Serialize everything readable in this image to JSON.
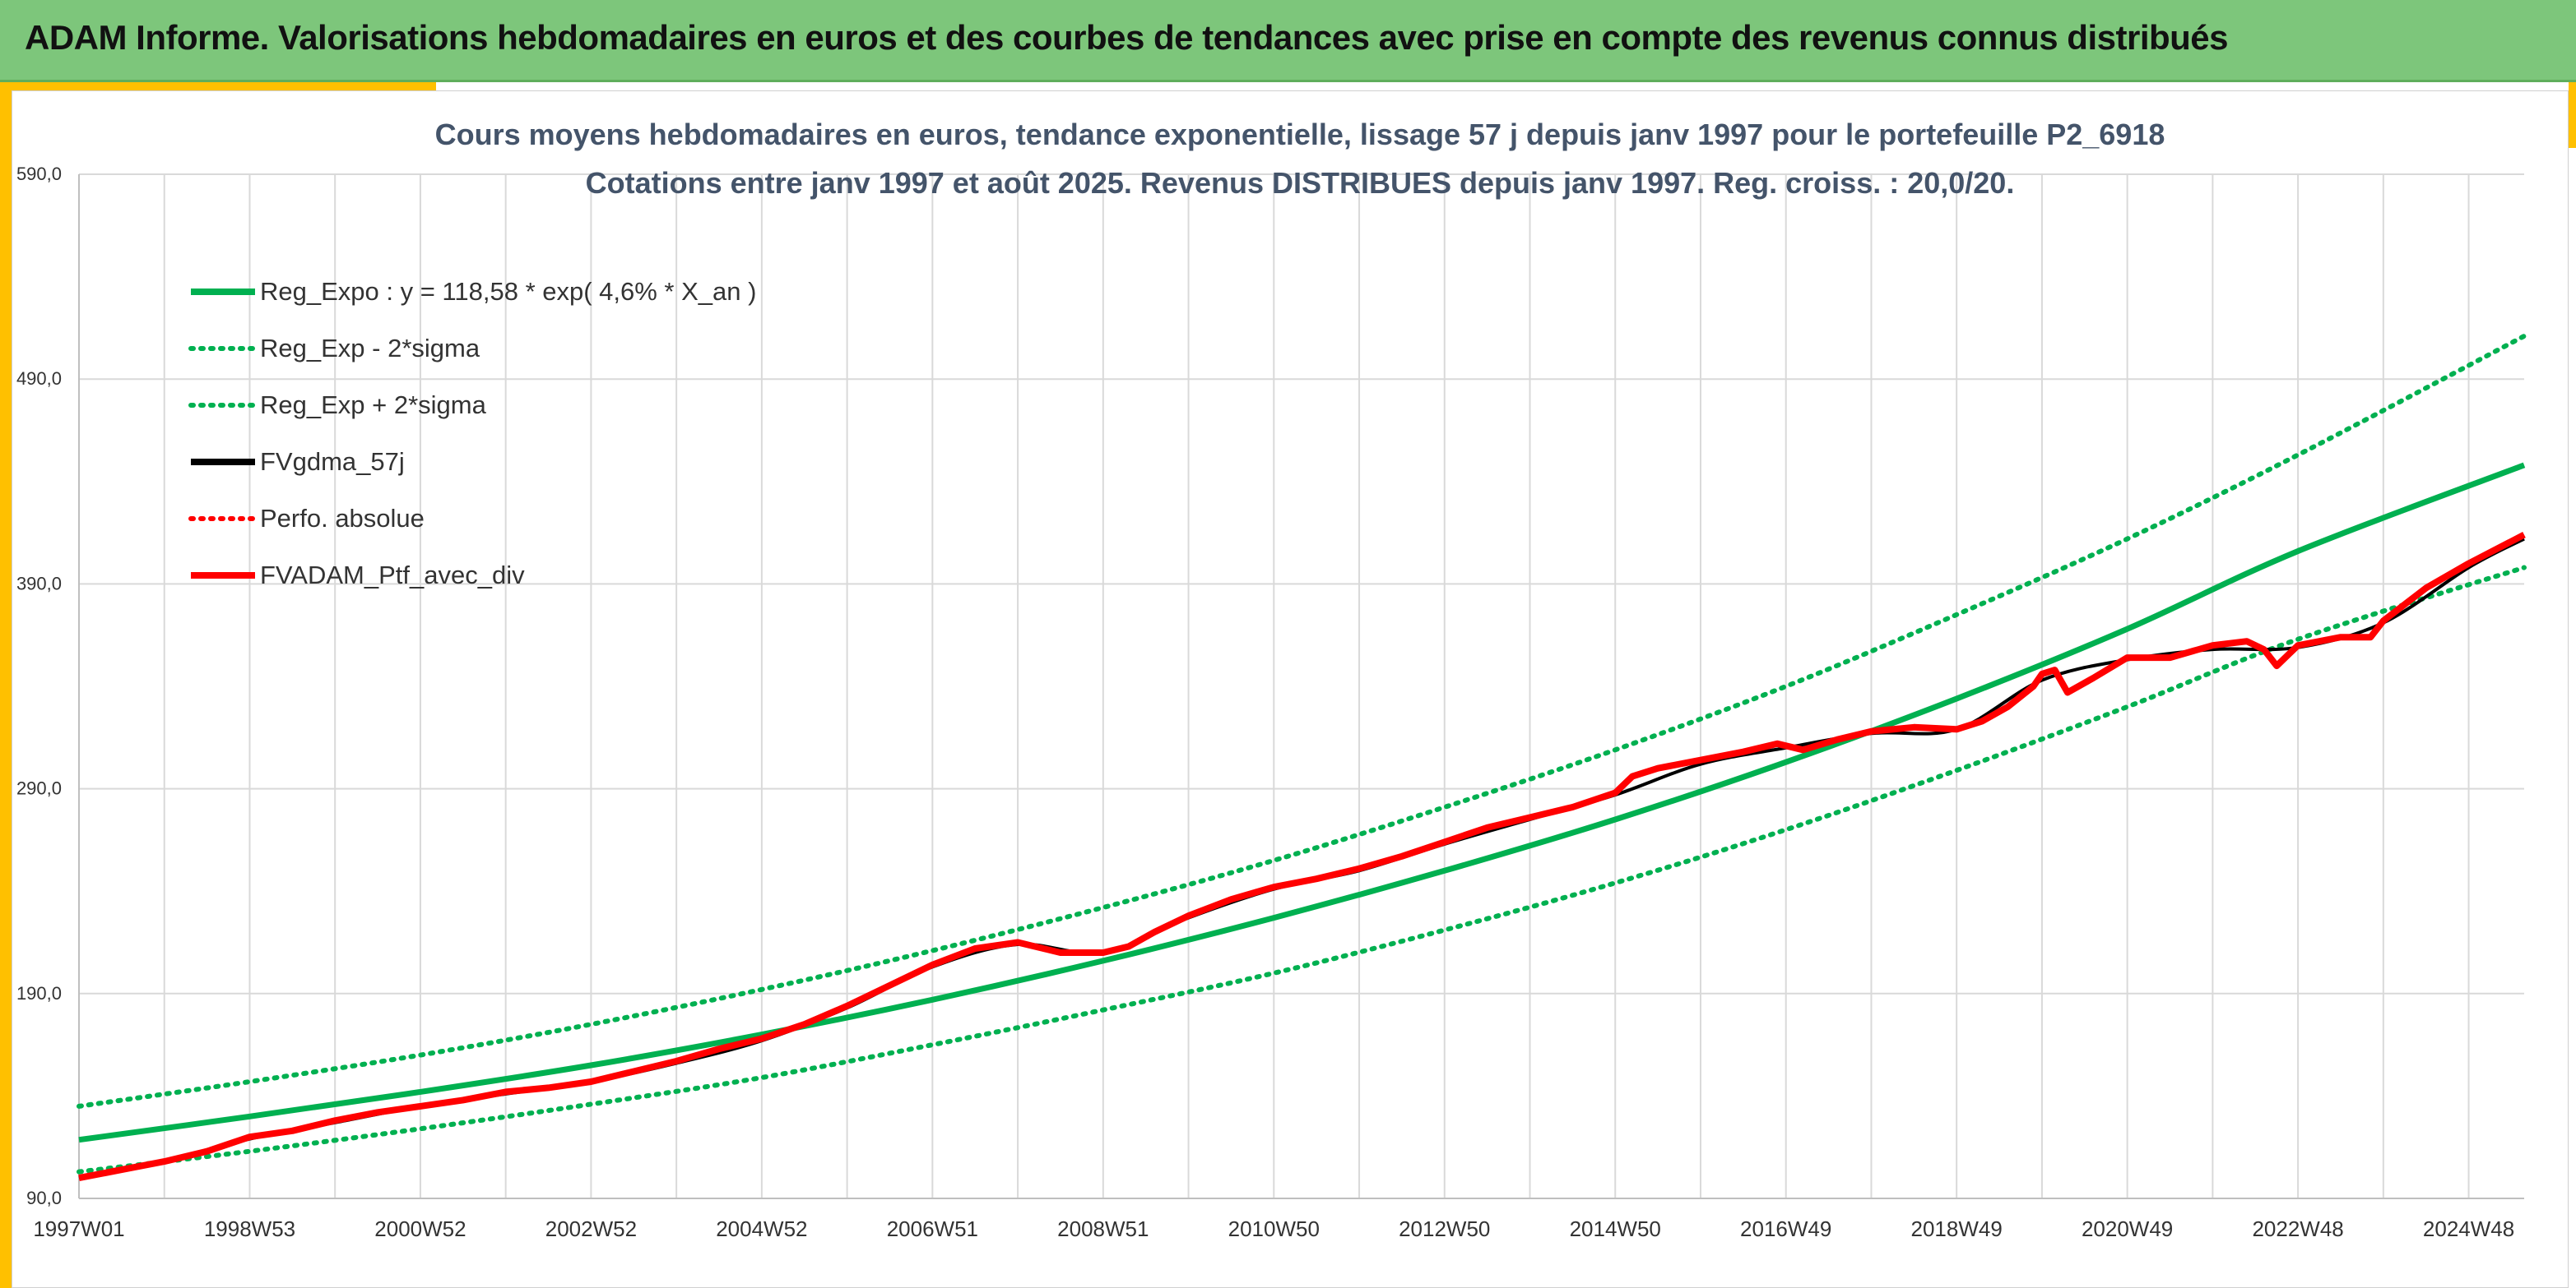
{
  "banner": {
    "title": "ADAM Informe. Valorisations hebdomadaires en euros et des courbes de tendances avec prise en compte des revenus connus distribués"
  },
  "colors": {
    "banner_bg": "#7dc67b",
    "accent": "#ffc000",
    "trend_green": "#00b050",
    "series_red": "#ff0000",
    "series_black": "#000000"
  },
  "chart_data": {
    "type": "line",
    "title": "Cours moyens hebdomadaires en euros, tendance exponentielle, lissage 57 j depuis janv 1997 pour le portefeuille P2_6918",
    "subtitle": "Cotations entre janv 1997 et août 2025. Revenus DISTRIBUES depuis janv 1997. Reg. croiss. : 20,0/20.",
    "xlabel": "",
    "ylabel": "",
    "xlim": [
      1997.0,
      2025.65
    ],
    "ylim": [
      90,
      590
    ],
    "y_ticks": [
      "90,0",
      "190,0",
      "290,0",
      "390,0",
      "490,0",
      "590,0"
    ],
    "x_ticks": [
      {
        "x": 1997.0,
        "label": "1997W01"
      },
      {
        "x": 1999.0,
        "label": "1998W53"
      },
      {
        "x": 2001.0,
        "label": "2000W52"
      },
      {
        "x": 2003.0,
        "label": "2002W52"
      },
      {
        "x": 2005.0,
        "label": "2004W52"
      },
      {
        "x": 2007.0,
        "label": "2006W51"
      },
      {
        "x": 2009.0,
        "label": "2008W51"
      },
      {
        "x": 2011.0,
        "label": "2010W50"
      },
      {
        "x": 2013.0,
        "label": "2012W50"
      },
      {
        "x": 2015.0,
        "label": "2014W50"
      },
      {
        "x": 2017.0,
        "label": "2016W49"
      },
      {
        "x": 2019.0,
        "label": "2018W49"
      },
      {
        "x": 2021.0,
        "label": "2020W49"
      },
      {
        "x": 2023.0,
        "label": "2022W48"
      },
      {
        "x": 2025.0,
        "label": "2024W48"
      }
    ],
    "grid": true,
    "legend_position": "top-left",
    "legend": [
      {
        "label": "Reg_Expo : y = 118,58 * exp( 4,6% *  X_an )",
        "color": "#00b050",
        "style": "solid"
      },
      {
        "label": "Reg_Exp - 2*sigma",
        "color": "#00b050",
        "style": "dotted"
      },
      {
        "label": "Reg_Exp + 2*sigma",
        "color": "#00b050",
        "style": "dotted"
      },
      {
        "label": "FVgdma_57j",
        "color": "#000000",
        "style": "solid"
      },
      {
        "label": "Perfo. absolue",
        "color": "#ff0000",
        "style": "dotted"
      },
      {
        "label": "FVADAM_Ptf_avec_div",
        "color": "#ff0000",
        "style": "solid"
      }
    ],
    "trend": {
      "x": [
        1997.0,
        1999.0,
        2001.0,
        2003.0,
        2005.0,
        2007.0,
        2009.0,
        2011.0,
        2013.0,
        2015.0,
        2017.0,
        2019.0,
        2021.0,
        2023.0,
        2025.65
      ],
      "reg_expo": [
        118.6,
        130,
        142,
        155,
        170,
        187,
        206,
        227,
        250,
        275,
        303,
        334,
        368,
        406,
        448
      ],
      "reg_minus_2sigma": [
        103,
        113,
        124,
        136,
        149,
        165,
        182,
        200,
        221,
        244,
        270,
        299,
        330,
        363,
        398
      ],
      "reg_plus_2sigma": [
        135,
        147,
        160,
        175,
        192,
        211,
        232,
        255,
        281,
        309,
        340,
        375,
        412,
        453,
        511
      ]
    },
    "series": [
      {
        "name": "FVADAM_Ptf_avec_div",
        "x": [
          1997.0,
          1997.5,
          1998.0,
          1998.5,
          1999.0,
          1999.5,
          2000.0,
          2000.5,
          2001.0,
          2001.5,
          2002.0,
          2002.5,
          2003.0,
          2003.5,
          2004.0,
          2004.5,
          2005.0,
          2005.5,
          2006.0,
          2006.5,
          2007.0,
          2007.5,
          2008.0,
          2008.5,
          2009.0,
          2009.3,
          2009.6,
          2010.0,
          2010.5,
          2011.0,
          2011.5,
          2012.0,
          2012.5,
          2013.0,
          2013.5,
          2014.0,
          2014.5,
          2015.0,
          2015.2,
          2015.5,
          2016.0,
          2016.5,
          2016.9,
          2017.2,
          2017.6,
          2018.0,
          2018.5,
          2019.0,
          2019.3,
          2019.6,
          2019.9,
          2020.0,
          2020.15,
          2020.3,
          2020.6,
          2021.0,
          2021.5,
          2022.0,
          2022.4,
          2022.6,
          2022.75,
          2022.9,
          2023.0,
          2023.5,
          2023.85,
          2024.0,
          2024.5,
          2025.0,
          2025.65
        ],
        "y": [
          100,
          104,
          108,
          113,
          120,
          123,
          128,
          132,
          135,
          138,
          142,
          144,
          147,
          152,
          157,
          163,
          168,
          175,
          184,
          194,
          204,
          212,
          215,
          210,
          210,
          213,
          220,
          228,
          236,
          242,
          246,
          251,
          257,
          264,
          271,
          276,
          281,
          288,
          296,
          300,
          304,
          308,
          312,
          309,
          314,
          318,
          320,
          319,
          323,
          330,
          340,
          346,
          348,
          337,
          344,
          354,
          354,
          360,
          362,
          358,
          350,
          356,
          360,
          364,
          364,
          372,
          388,
          400,
          414
        ]
      },
      {
        "name": "FVgdma_57j",
        "x": [
          1997.0,
          1998.0,
          1999.0,
          2000.0,
          2001.0,
          2002.0,
          2003.0,
          2004.0,
          2005.0,
          2006.0,
          2007.0,
          2008.0,
          2009.0,
          2010.0,
          2011.0,
          2012.0,
          2013.0,
          2014.0,
          2015.0,
          2016.0,
          2017.0,
          2018.0,
          2019.0,
          2020.0,
          2021.0,
          2022.0,
          2023.0,
          2024.0,
          2025.0,
          2025.65
        ],
        "y": [
          100,
          108,
          119,
          127,
          135,
          141,
          147,
          156,
          167,
          183,
          203,
          214,
          210,
          227,
          241,
          250,
          263,
          275,
          287,
          302,
          310,
          317,
          319,
          343,
          353,
          358,
          359,
          371,
          398,
          412
        ]
      }
    ]
  }
}
